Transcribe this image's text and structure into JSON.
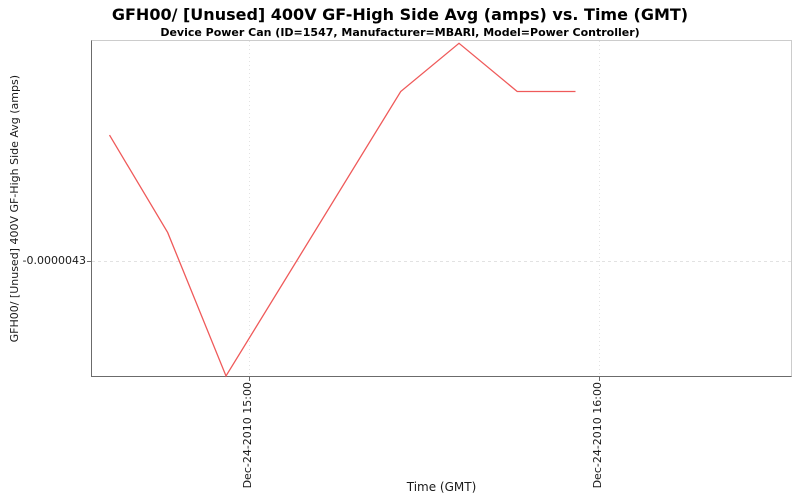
{
  "chart_data": {
    "type": "line",
    "title": "GFH00/ [Unused] 400V GF-High Side Avg (amps) vs. Time (GMT)",
    "subtitle": "Device Power Can (ID=1547, Manufacturer=MBARI, Model=Power Controller)",
    "xlabel": "Time (GMT)",
    "ylabel": "GFH00/ [Unused] 400V GF-High Side Avg (amps)",
    "legend": "none",
    "grid": true,
    "x_axis": {
      "unit": "minutes since midnight Dec-24-2010",
      "range": [
        873,
        993
      ],
      "ticks": [
        {
          "label": "Dec-24-2010 15:00",
          "value": 900
        },
        {
          "label": "Dec-24-2010 16:00",
          "value": 960
        }
      ]
    },
    "y_axis": {
      "range": [
        -4.4e-06,
        -4.108e-06
      ],
      "ticks": [
        {
          "label": "-0.0000043",
          "value": -4.3e-06
        }
      ]
    },
    "series": [
      {
        "name": "GFH00/ [Unused] 400V GF-High Side Avg",
        "color": "#ef5a5a",
        "points": [
          {
            "time": "Dec-24-2010 14:36",
            "x": 876,
            "y": -4.19e-06
          },
          {
            "time": "Dec-24-2010 14:46",
            "x": 886,
            "y": -4.275e-06
          },
          {
            "time": "Dec-24-2010 14:56",
            "x": 896,
            "y": -4.4e-06
          },
          {
            "time": "Dec-24-2010 15:26",
            "x": 926,
            "y": -4.152e-06
          },
          {
            "time": "Dec-24-2010 15:36",
            "x": 936,
            "y": -4.11e-06
          },
          {
            "time": "Dec-24-2010 15:46",
            "x": 946,
            "y": -4.152e-06
          },
          {
            "time": "Dec-24-2010 15:56",
            "x": 956,
            "y": -4.152e-06
          }
        ]
      }
    ],
    "colors": {
      "series": "#ef5a5a",
      "gridline": "#e2e2e2",
      "axis_dark": "#6b6b6b",
      "border_light": "#cccccc",
      "background": "#ffffff",
      "title_text": "#000000",
      "tick_text": "#1a1a1a"
    }
  }
}
